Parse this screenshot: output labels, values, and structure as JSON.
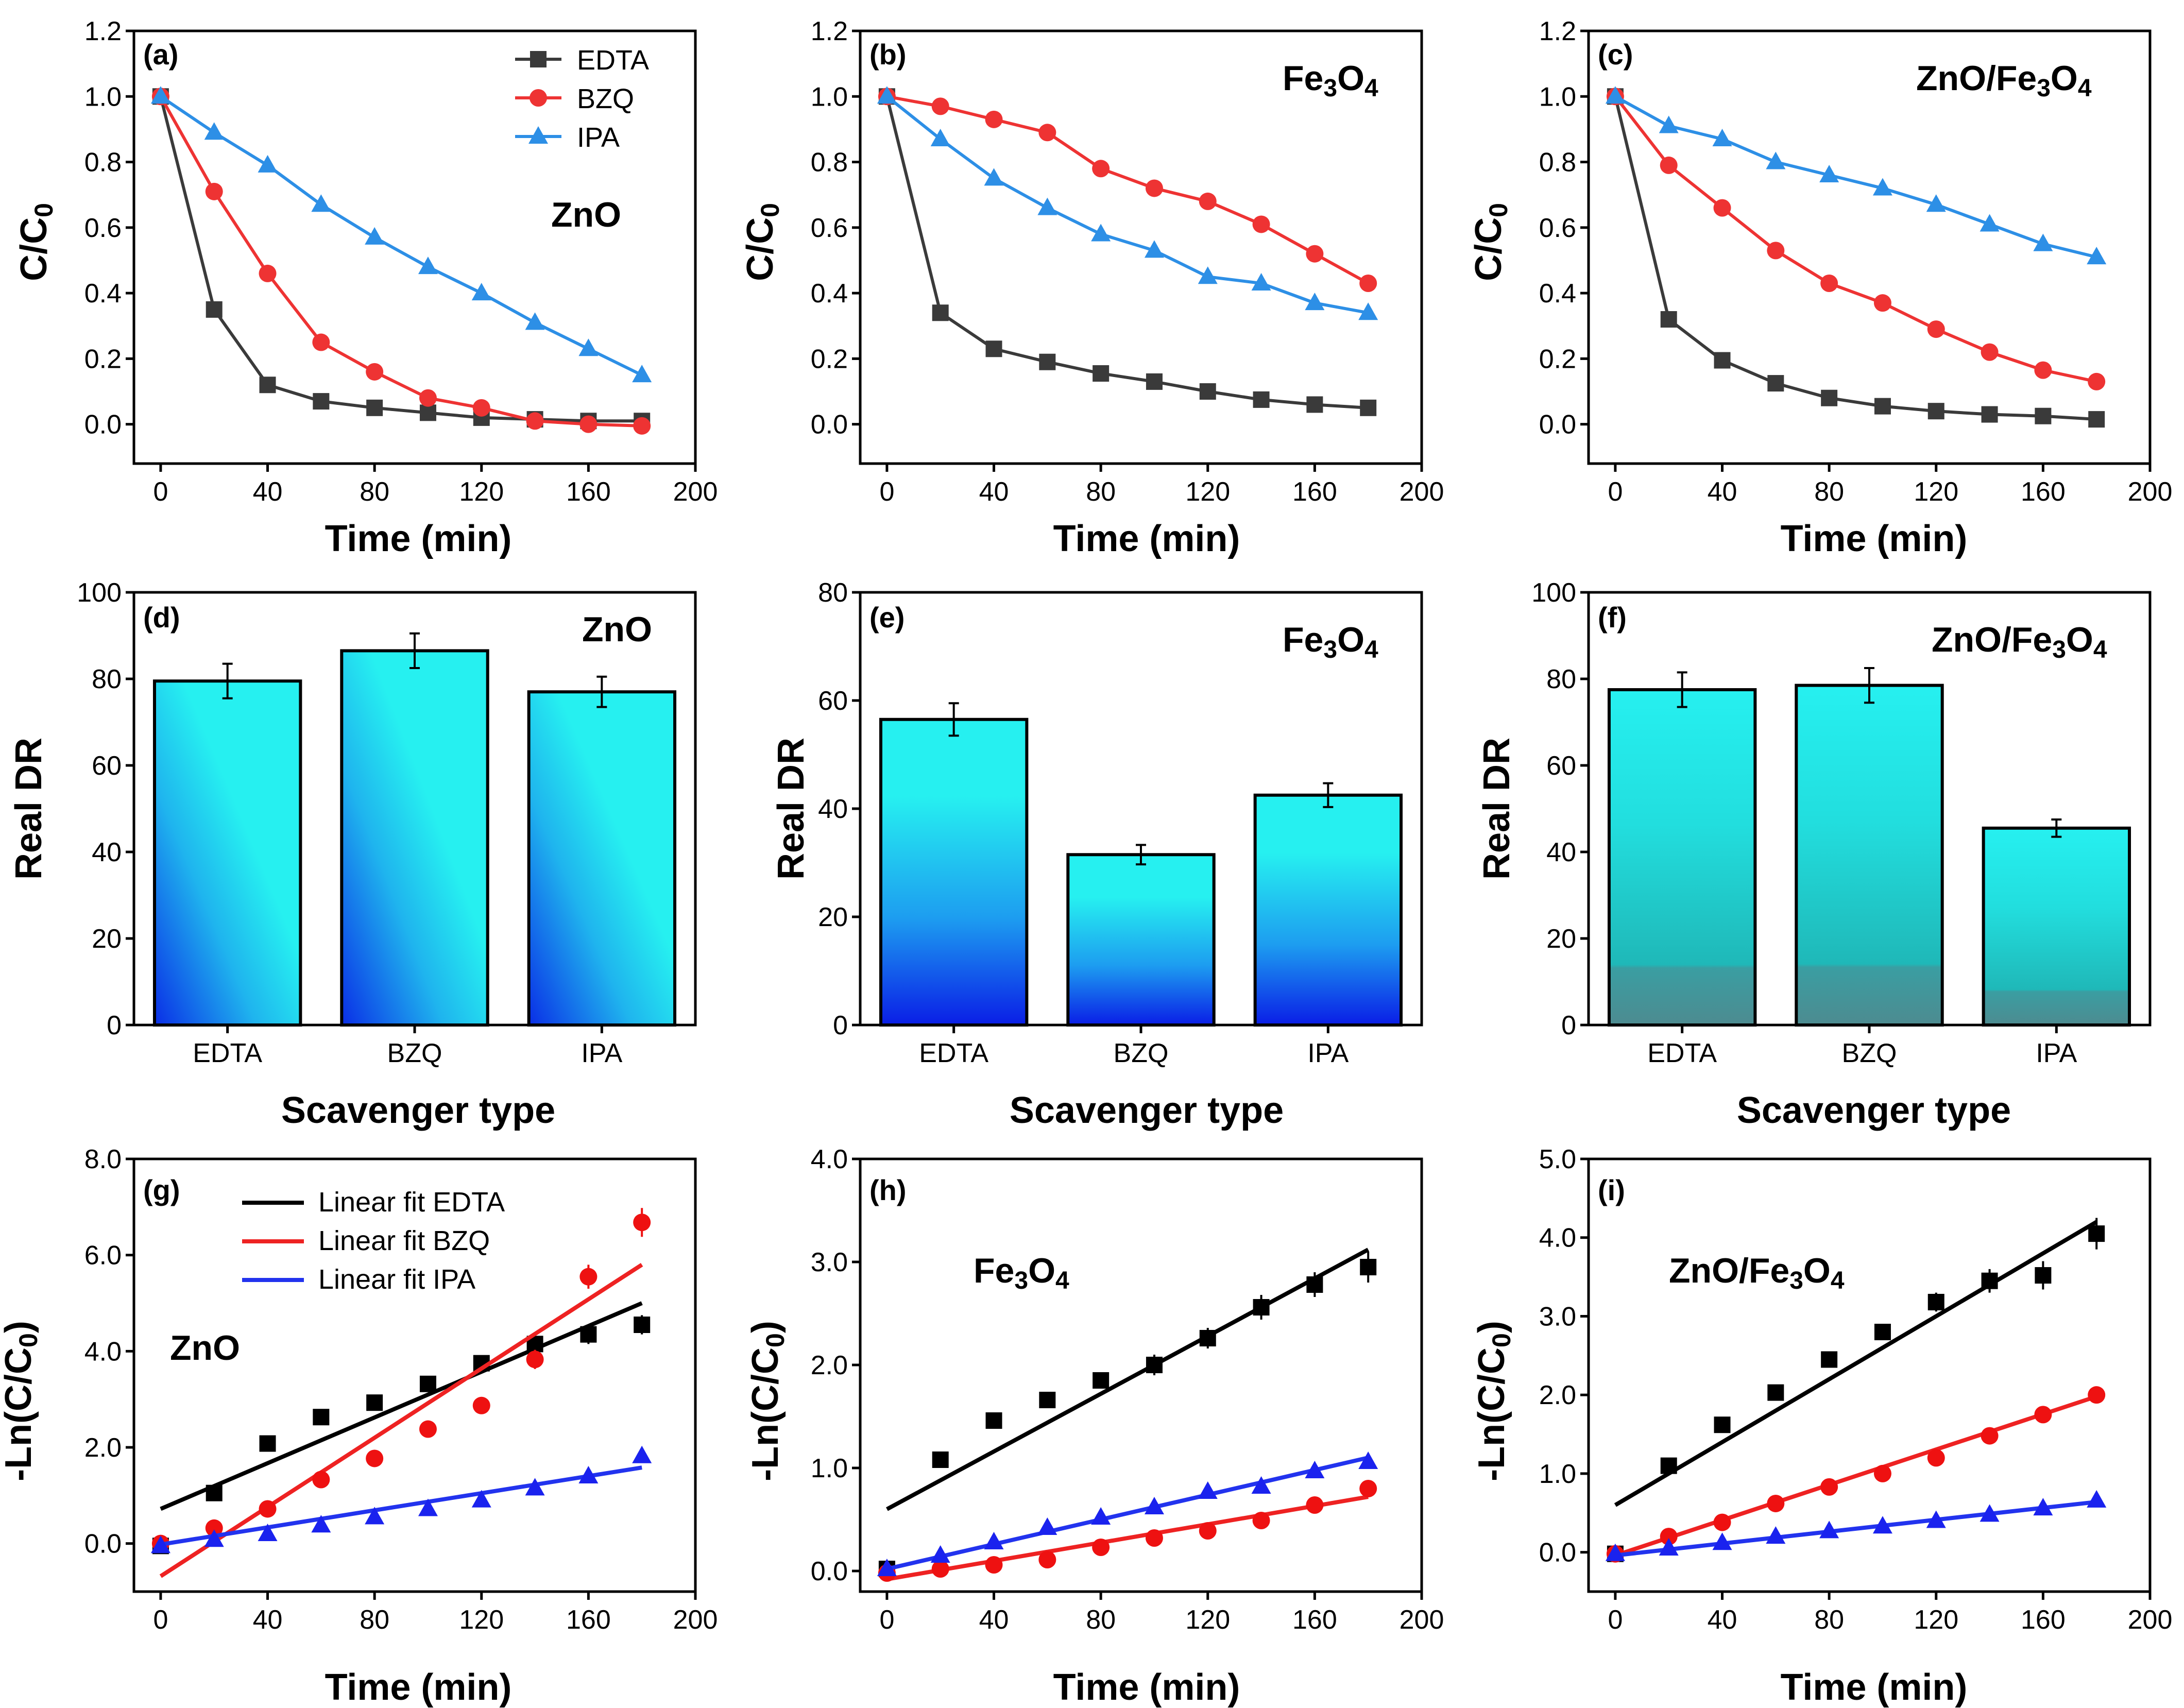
{
  "colors": {
    "EDTA": "#3a3a3a",
    "BZQ": "#ee3333",
    "IPA": "#2d8fe6",
    "EDTA_fit": "#000000",
    "BZQ_fit": "#ee2222",
    "IPA_fit": "#2233ee"
  },
  "chart_data": [
    {
      "panel": "(a)",
      "type": "line",
      "material": "ZnO",
      "xlabel": "Time (min)",
      "ylabel": "C/C0",
      "xlim": [
        -10,
        200
      ],
      "ylim": [
        -0.12,
        1.2
      ],
      "xticks": [
        0,
        40,
        80,
        120,
        160,
        200
      ],
      "yticks": [
        0.0,
        0.2,
        0.4,
        0.6,
        0.8,
        1.0,
        1.2
      ],
      "ytick_labels": [
        "0.0",
        "0.2",
        "0.4",
        "0.6",
        "0.8",
        "1.0",
        "1.2"
      ],
      "legend": [
        "EDTA",
        "BZQ",
        "IPA"
      ],
      "x": [
        0,
        20,
        40,
        60,
        80,
        100,
        120,
        140,
        160,
        180
      ],
      "series": [
        {
          "name": "EDTA",
          "marker": "square",
          "values": [
            1.0,
            0.35,
            0.12,
            0.07,
            0.05,
            0.035,
            0.02,
            0.015,
            0.01,
            0.01
          ]
        },
        {
          "name": "BZQ",
          "marker": "circle",
          "values": [
            1.0,
            0.71,
            0.46,
            0.25,
            0.16,
            0.08,
            0.05,
            0.01,
            0.0,
            -0.005
          ]
        },
        {
          "name": "IPA",
          "marker": "triangle",
          "values": [
            1.0,
            0.89,
            0.79,
            0.67,
            0.57,
            0.48,
            0.4,
            0.31,
            0.23,
            0.15
          ]
        }
      ]
    },
    {
      "panel": "(b)",
      "type": "line",
      "material": "Fe3O4",
      "xlabel": "Time (min)",
      "ylabel": "C/C0",
      "xlim": [
        -10,
        200
      ],
      "ylim": [
        -0.12,
        1.2
      ],
      "xticks": [
        0,
        40,
        80,
        120,
        160,
        200
      ],
      "yticks": [
        0.0,
        0.2,
        0.4,
        0.6,
        0.8,
        1.0,
        1.2
      ],
      "ytick_labels": [
        "0.0",
        "0.2",
        "0.4",
        "0.6",
        "0.8",
        "1.0",
        "1.2"
      ],
      "x": [
        0,
        20,
        40,
        60,
        80,
        100,
        120,
        140,
        160,
        180
      ],
      "series": [
        {
          "name": "EDTA",
          "marker": "square",
          "values": [
            1.0,
            0.34,
            0.23,
            0.19,
            0.155,
            0.13,
            0.1,
            0.075,
            0.06,
            0.05
          ]
        },
        {
          "name": "BZQ",
          "marker": "circle",
          "values": [
            1.0,
            0.97,
            0.93,
            0.89,
            0.78,
            0.72,
            0.68,
            0.61,
            0.52,
            0.43
          ]
        },
        {
          "name": "IPA",
          "marker": "triangle",
          "values": [
            1.0,
            0.87,
            0.75,
            0.66,
            0.58,
            0.53,
            0.45,
            0.43,
            0.37,
            0.34
          ]
        }
      ]
    },
    {
      "panel": "(c)",
      "type": "line",
      "material": "ZnO/Fe3O4",
      "xlabel": "Time (min)",
      "ylabel": "C/C0",
      "xlim": [
        -10,
        200
      ],
      "ylim": [
        -0.12,
        1.2
      ],
      "xticks": [
        0,
        40,
        80,
        120,
        160,
        200
      ],
      "yticks": [
        0.0,
        0.2,
        0.4,
        0.6,
        0.8,
        1.0,
        1.2
      ],
      "ytick_labels": [
        "0.0",
        "0.2",
        "0.4",
        "0.6",
        "0.8",
        "1.0",
        "1.2"
      ],
      "x": [
        0,
        20,
        40,
        60,
        80,
        100,
        120,
        140,
        160,
        180
      ],
      "series": [
        {
          "name": "EDTA",
          "marker": "square",
          "values": [
            1.0,
            0.32,
            0.195,
            0.125,
            0.08,
            0.055,
            0.04,
            0.03,
            0.025,
            0.015
          ]
        },
        {
          "name": "BZQ",
          "marker": "circle",
          "values": [
            1.0,
            0.79,
            0.66,
            0.53,
            0.43,
            0.37,
            0.29,
            0.22,
            0.165,
            0.13
          ]
        },
        {
          "name": "IPA",
          "marker": "triangle",
          "values": [
            1.0,
            0.91,
            0.87,
            0.8,
            0.76,
            0.72,
            0.67,
            0.61,
            0.55,
            0.51
          ]
        }
      ]
    },
    {
      "panel": "(d)",
      "type": "bar",
      "material": "ZnO",
      "xlabel": "Scavenger type",
      "ylabel": "Real DR",
      "ylim": [
        0,
        100
      ],
      "yticks": [
        0,
        20,
        40,
        60,
        80,
        100
      ],
      "ytick_labels": [
        "0",
        "20",
        "40",
        "60",
        "80",
        "100"
      ],
      "categories": [
        "EDTA",
        "BZQ",
        "IPA"
      ],
      "values": [
        79.5,
        86.5,
        77.0
      ],
      "errors": [
        4.0,
        4.0,
        3.5
      ],
      "fill": "diagonal"
    },
    {
      "panel": "(e)",
      "type": "bar",
      "material": "Fe3O4",
      "xlabel": "Scavenger type",
      "ylabel": "Real DR",
      "ylim": [
        0,
        80
      ],
      "yticks": [
        0,
        20,
        40,
        60,
        80
      ],
      "ytick_labels": [
        "0",
        "20",
        "40",
        "60",
        "80"
      ],
      "categories": [
        "EDTA",
        "BZQ",
        "IPA"
      ],
      "values": [
        56.5,
        31.5,
        42.5
      ],
      "errors": [
        3.0,
        1.8,
        2.2
      ],
      "fill": "vertical-blue"
    },
    {
      "panel": "(f)",
      "type": "bar",
      "material": "ZnO/Fe3O4",
      "xlabel": "Scavenger type",
      "ylabel": "Real DR",
      "ylim": [
        0,
        100
      ],
      "yticks": [
        0,
        20,
        40,
        60,
        80,
        100
      ],
      "ytick_labels": [
        "0",
        "20",
        "40",
        "60",
        "80",
        "100"
      ],
      "categories": [
        "EDTA",
        "BZQ",
        "IPA"
      ],
      "values": [
        77.5,
        78.5,
        45.5
      ],
      "errors": [
        4.0,
        4.0,
        2.0
      ],
      "fill": "vertical-teal"
    },
    {
      "panel": "(g)",
      "type": "scatter",
      "material": "ZnO",
      "xlabel": "Time (min)",
      "ylabel": "-Ln(C/C0)",
      "xlim": [
        -10,
        200
      ],
      "ylim": [
        -1.0,
        8.0
      ],
      "xticks": [
        0,
        40,
        80,
        120,
        160,
        200
      ],
      "yticks": [
        0,
        2,
        4,
        6,
        8
      ],
      "ytick_labels": [
        "0.0",
        "2.0",
        "4.0",
        "6.0",
        "8.0"
      ],
      "legend": [
        "Linear fit EDTA",
        "Linear fit BZQ",
        "Linear fit IPA"
      ],
      "x": [
        0,
        20,
        40,
        60,
        80,
        100,
        120,
        140,
        160,
        180
      ],
      "series": [
        {
          "name": "EDTA",
          "marker": "square",
          "values": [
            -0.05,
            1.05,
            2.08,
            2.63,
            2.93,
            3.32,
            3.75,
            4.15,
            4.35,
            4.55
          ],
          "errors": [
            0.1,
            0.1,
            0.1,
            0.1,
            0.1,
            0.12,
            0.12,
            0.15,
            0.2,
            0.2
          ],
          "fit": [
            0.72,
            5.0
          ]
        },
        {
          "name": "BZQ",
          "marker": "circle",
          "values": [
            0.0,
            0.32,
            0.72,
            1.33,
            1.77,
            2.38,
            2.87,
            3.83,
            5.55,
            6.68
          ],
          "errors": [
            0.05,
            0.1,
            0.1,
            0.15,
            0.15,
            0.15,
            0.15,
            0.2,
            0.25,
            0.3
          ],
          "fit": [
            -0.68,
            5.8
          ]
        },
        {
          "name": "IPA",
          "marker": "triangle",
          "values": [
            -0.05,
            0.08,
            0.2,
            0.38,
            0.55,
            0.72,
            0.9,
            1.15,
            1.4,
            1.82
          ],
          "errors": [
            0.05,
            0.05,
            0.05,
            0.05,
            0.05,
            0.05,
            0.05,
            0.05,
            0.08,
            0.08
          ],
          "fit": [
            -0.02,
            1.58
          ]
        }
      ]
    },
    {
      "panel": "(h)",
      "type": "scatter",
      "material": "Fe3O4",
      "xlabel": "Time (min)",
      "ylabel": "-Ln(C/C0)",
      "xlim": [
        -10,
        200
      ],
      "ylim": [
        -0.2,
        4.0
      ],
      "xticks": [
        0,
        40,
        80,
        120,
        160,
        200
      ],
      "yticks": [
        0,
        1,
        2,
        3,
        4
      ],
      "ytick_labels": [
        "0.0",
        "1.0",
        "2.0",
        "3.0",
        "4.0"
      ],
      "x": [
        0,
        20,
        40,
        60,
        80,
        100,
        120,
        140,
        160,
        180
      ],
      "series": [
        {
          "name": "EDTA",
          "marker": "square",
          "values": [
            0.02,
            1.08,
            1.46,
            1.66,
            1.85,
            2.0,
            2.26,
            2.56,
            2.78,
            2.95
          ],
          "errors": [
            0.05,
            0.05,
            0.08,
            0.08,
            0.08,
            0.1,
            0.1,
            0.12,
            0.12,
            0.15
          ],
          "fit": [
            0.6,
            3.12
          ]
        },
        {
          "name": "BZQ",
          "marker": "circle",
          "values": [
            -0.02,
            0.02,
            0.06,
            0.11,
            0.23,
            0.32,
            0.39,
            0.49,
            0.64,
            0.8
          ],
          "errors": [
            0.03,
            0.03,
            0.03,
            0.03,
            0.03,
            0.04,
            0.04,
            0.05,
            0.06,
            0.08
          ],
          "fit": [
            -0.08,
            0.72
          ]
        },
        {
          "name": "IPA",
          "marker": "triangle",
          "values": [
            0.02,
            0.15,
            0.28,
            0.42,
            0.52,
            0.62,
            0.77,
            0.82,
            0.97,
            1.06
          ],
          "errors": [
            0.03,
            0.03,
            0.03,
            0.03,
            0.03,
            0.03,
            0.03,
            0.04,
            0.04,
            0.04
          ],
          "fit": [
            0.02,
            1.1
          ]
        }
      ]
    },
    {
      "panel": "(i)",
      "type": "scatter",
      "material": "ZnO/Fe3O4",
      "xlabel": "Time (min)",
      "ylabel": "-Ln(C/C0)",
      "xlim": [
        -10,
        200
      ],
      "ylim": [
        -0.5,
        5.0
      ],
      "xticks": [
        0,
        40,
        80,
        120,
        160,
        200
      ],
      "yticks": [
        0,
        1,
        2,
        3,
        4,
        5
      ],
      "ytick_labels": [
        "0.0",
        "1.0",
        "2.0",
        "3.0",
        "4.0",
        "5.0"
      ],
      "x": [
        0,
        20,
        40,
        60,
        80,
        100,
        120,
        140,
        160,
        180
      ],
      "series": [
        {
          "name": "EDTA",
          "marker": "square",
          "values": [
            -0.02,
            1.1,
            1.62,
            2.03,
            2.45,
            2.8,
            3.18,
            3.45,
            3.52,
            4.05
          ],
          "errors": [
            0.05,
            0.08,
            0.08,
            0.08,
            0.1,
            0.1,
            0.12,
            0.15,
            0.18,
            0.2
          ],
          "fit": [
            0.6,
            4.2
          ]
        },
        {
          "name": "BZQ",
          "marker": "circle",
          "values": [
            -0.02,
            0.2,
            0.38,
            0.62,
            0.83,
            1.0,
            1.2,
            1.48,
            1.75,
            2.0
          ],
          "errors": [
            0.03,
            0.03,
            0.03,
            0.04,
            0.04,
            0.05,
            0.05,
            0.05,
            0.06,
            0.06
          ],
          "fit": [
            -0.04,
            1.98
          ]
        },
        {
          "name": "IPA",
          "marker": "triangle",
          "values": [
            -0.02,
            0.05,
            0.12,
            0.2,
            0.27,
            0.33,
            0.4,
            0.48,
            0.56,
            0.66
          ],
          "errors": [
            0.02,
            0.02,
            0.02,
            0.02,
            0.02,
            0.02,
            0.02,
            0.03,
            0.03,
            0.03
          ],
          "fit": [
            -0.04,
            0.64
          ]
        }
      ]
    }
  ]
}
